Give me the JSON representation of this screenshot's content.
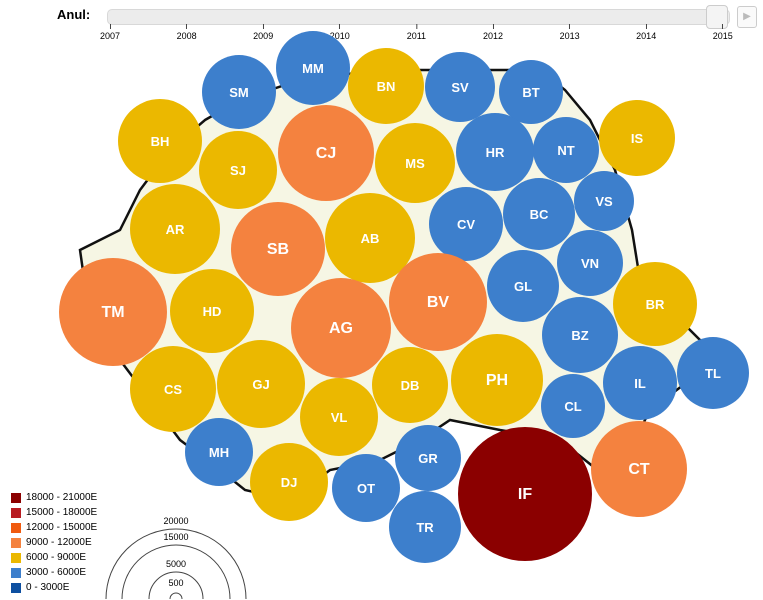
{
  "slider": {
    "label": "Anul:",
    "years": [
      "2007",
      "2008",
      "2009",
      "2010",
      "2011",
      "2012",
      "2013",
      "2014",
      "2015"
    ],
    "selected": "2015",
    "play_icon": "play-icon"
  },
  "colors": {
    "c0": "#0d4fa0",
    "c1": "#3d7fcc",
    "c2": "#ebb800",
    "c3": "#f4823f",
    "c4": "#f05a0f",
    "c5": "#b81c22",
    "c6": "#8b0000"
  },
  "legend": [
    {
      "label": "18000 - 21000E",
      "cls": "c6"
    },
    {
      "label": "15000 - 18000E",
      "cls": "c5"
    },
    {
      "label": "12000 - 15000E",
      "cls": "c4"
    },
    {
      "label": "9000 - 12000E",
      "cls": "c3"
    },
    {
      "label": "6000 - 9000E",
      "cls": "c2"
    },
    {
      "label": "3000 - 6000E",
      "cls": "c1"
    },
    {
      "label": "0 - 3000E",
      "cls": "c0"
    }
  ],
  "size_legend": [
    "20000",
    "15000",
    "5000",
    "500"
  ],
  "counties": [
    {
      "code": "SM",
      "cls": "c1"
    },
    {
      "code": "MM",
      "cls": "c1"
    },
    {
      "code": "BN",
      "cls": "c2"
    },
    {
      "code": "SV",
      "cls": "c1"
    },
    {
      "code": "BT",
      "cls": "c1"
    },
    {
      "code": "IS",
      "cls": "c2"
    },
    {
      "code": "BH",
      "cls": "c2"
    },
    {
      "code": "SJ",
      "cls": "c2"
    },
    {
      "code": "CJ",
      "cls": "c3"
    },
    {
      "code": "MS",
      "cls": "c2"
    },
    {
      "code": "HR",
      "cls": "c1"
    },
    {
      "code": "NT",
      "cls": "c1"
    },
    {
      "code": "VS",
      "cls": "c1"
    },
    {
      "code": "AR",
      "cls": "c2"
    },
    {
      "code": "SB",
      "cls": "c3"
    },
    {
      "code": "AB",
      "cls": "c2"
    },
    {
      "code": "CV",
      "cls": "c1"
    },
    {
      "code": "BC",
      "cls": "c1"
    },
    {
      "code": "VN",
      "cls": "c1"
    },
    {
      "code": "BR",
      "cls": "c2"
    },
    {
      "code": "TM",
      "cls": "c3"
    },
    {
      "code": "HD",
      "cls": "c2"
    },
    {
      "code": "AG",
      "cls": "c3"
    },
    {
      "code": "BV",
      "cls": "c3"
    },
    {
      "code": "GL",
      "cls": "c1"
    },
    {
      "code": "BZ",
      "cls": "c1"
    },
    {
      "code": "TL",
      "cls": "c1"
    },
    {
      "code": "IL",
      "cls": "c1"
    },
    {
      "code": "CS",
      "cls": "c2"
    },
    {
      "code": "GJ",
      "cls": "c2"
    },
    {
      "code": "DB",
      "cls": "c2"
    },
    {
      "code": "PH",
      "cls": "c2"
    },
    {
      "code": "CL",
      "cls": "c1"
    },
    {
      "code": "VL",
      "cls": "c2"
    },
    {
      "code": "MH",
      "cls": "c1"
    },
    {
      "code": "DJ",
      "cls": "c2"
    },
    {
      "code": "GR",
      "cls": "c1"
    },
    {
      "code": "OT",
      "cls": "c1"
    },
    {
      "code": "TR",
      "cls": "c1"
    },
    {
      "code": "IF",
      "cls": "c6"
    },
    {
      "code": "CT",
      "cls": "c3"
    }
  ]
}
